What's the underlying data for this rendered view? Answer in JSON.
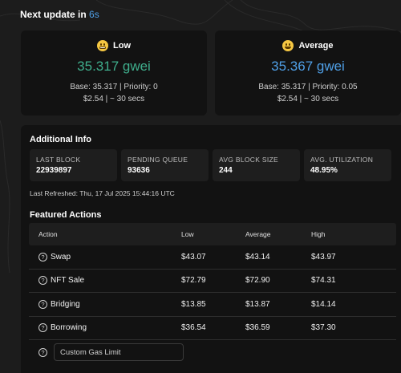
{
  "header": {
    "prefix": "Next update in",
    "countdown": "6s"
  },
  "cards": [
    {
      "level": "Low",
      "price": "35.317 gwei",
      "line1": "Base: 35.317 | Priority: 0",
      "line2": "$2.54 | ~ 30 secs"
    },
    {
      "level": "Average",
      "price": "35.367 gwei",
      "line1": "Base: 35.317 | Priority: 0.05",
      "line2": "$2.54 | ~ 30 secs"
    }
  ],
  "info": {
    "title": "Additional Info",
    "stats": [
      {
        "label": "LAST BLOCK",
        "value": "22939897"
      },
      {
        "label": "PENDING QUEUE",
        "value": "93636"
      },
      {
        "label": "AVG BLOCK SIZE",
        "value": "244"
      },
      {
        "label": "AVG. UTILIZATION",
        "value": "48.95%"
      }
    ],
    "refreshed": "Last Refreshed: Thu, 17 Jul 2025 15:44:16 UTC"
  },
  "featured": {
    "title": "Featured Actions",
    "columns": [
      "Action",
      "Low",
      "Average",
      "High"
    ],
    "rows": [
      {
        "action": "Swap",
        "low": "$43.07",
        "avg": "$43.14",
        "high": "$43.97"
      },
      {
        "action": "NFT Sale",
        "low": "$72.79",
        "avg": "$72.90",
        "high": "$74.31"
      },
      {
        "action": "Bridging",
        "low": "$13.85",
        "avg": "$13.87",
        "high": "$14.14"
      },
      {
        "action": "Borrowing",
        "low": "$36.54",
        "avg": "$36.59",
        "high": "$37.30"
      }
    ],
    "custom_placeholder": "Custom Gas Limit"
  },
  "icons": {
    "help": "question-circle-icon",
    "low_face": "grinning-face-icon",
    "avg_face": "smiling-face-icon"
  },
  "colors": {
    "low": "#3fae8c",
    "average": "#4f9fe6",
    "background": "#1c1c1c",
    "card": "#121212"
  }
}
